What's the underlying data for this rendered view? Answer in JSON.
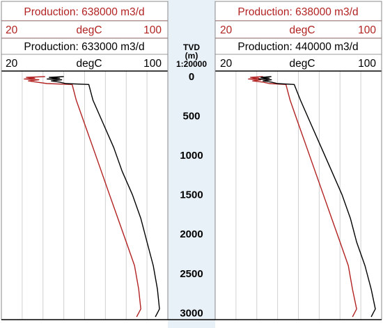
{
  "chart_data": [
    {
      "type": "line",
      "title": "",
      "depth_label": "TVD",
      "ylabel": "(m)",
      "scale": "1:20000",
      "ylim": [
        0,
        3050
      ],
      "y_inverted": true,
      "y_ticks": [
        0,
        500,
        1000,
        1500,
        2000,
        2500,
        3000
      ],
      "xlabel": "degC",
      "xlim": [
        20,
        100
      ],
      "grid": true,
      "series": [
        {
          "name": "Production: 638000 m3/d",
          "color": "#b22222",
          "points": [
            [
              41,
              0
            ],
            [
              32,
              10
            ],
            [
              36,
              20
            ],
            [
              31,
              30
            ],
            [
              38,
              40
            ],
            [
              33,
              55
            ],
            [
              37,
              70
            ],
            [
              42,
              88
            ],
            [
              54,
              100
            ],
            [
              56,
              300
            ],
            [
              60,
              600
            ],
            [
              64,
              900
            ],
            [
              68,
              1200
            ],
            [
              72,
              1500
            ],
            [
              76,
              1800
            ],
            [
              80,
              2100
            ],
            [
              84,
              2400
            ],
            [
              86,
              2700
            ],
            [
              87,
              2950
            ],
            [
              86,
              3000
            ],
            [
              85,
              3050
            ]
          ]
        },
        {
          "name": "Production: 633000 m3/d",
          "color": "#000000",
          "points": [
            [
              50,
              0
            ],
            [
              43,
              10
            ],
            [
              48,
              20
            ],
            [
              42,
              30
            ],
            [
              49,
              40
            ],
            [
              44,
              55
            ],
            [
              48,
              70
            ],
            [
              51,
              88
            ],
            [
              62,
              100
            ],
            [
              64,
              300
            ],
            [
              69,
              600
            ],
            [
              74,
              900
            ],
            [
              78,
              1200
            ],
            [
              83,
              1500
            ],
            [
              87,
              1800
            ],
            [
              90,
              2100
            ],
            [
              93,
              2400
            ],
            [
              95,
              2700
            ],
            [
              96,
              2950
            ],
            [
              95,
              3000
            ],
            [
              94,
              3050
            ]
          ]
        }
      ]
    },
    {
      "type": "line",
      "title": "",
      "ylim": [
        0,
        3050
      ],
      "y_inverted": true,
      "xlabel": "degC",
      "xlim": [
        20,
        100
      ],
      "grid": true,
      "series": [
        {
          "name": "Production: 638000 m3/d",
          "color": "#b22222",
          "points": [
            [
              43,
              0
            ],
            [
              37,
              10
            ],
            [
              41,
              20
            ],
            [
              36,
              30
            ],
            [
              42,
              40
            ],
            [
              38,
              55
            ],
            [
              43,
              70
            ],
            [
              46,
              88
            ],
            [
              54,
              100
            ],
            [
              56,
              300
            ],
            [
              60,
              600
            ],
            [
              64,
              900
            ],
            [
              68,
              1200
            ],
            [
              72,
              1500
            ],
            [
              76,
              1800
            ],
            [
              80,
              2100
            ],
            [
              84,
              2400
            ],
            [
              86,
              2700
            ],
            [
              88,
              2950
            ],
            [
              87,
              3000
            ],
            [
              86,
              3050
            ]
          ]
        },
        {
          "name": "Production: 440000 m3/d",
          "color": "#000000",
          "points": [
            [
              47,
              0
            ],
            [
              42,
              10
            ],
            [
              46,
              20
            ],
            [
              41,
              30
            ],
            [
              47,
              40
            ],
            [
              43,
              55
            ],
            [
              47,
              70
            ],
            [
              50,
              88
            ],
            [
              58,
              100
            ],
            [
              61,
              300
            ],
            [
              66,
              600
            ],
            [
              71,
              900
            ],
            [
              76,
              1200
            ],
            [
              81,
              1500
            ],
            [
              85,
              1800
            ],
            [
              88,
              2100
            ],
            [
              92,
              2400
            ],
            [
              95,
              2700
            ],
            [
              97,
              2950
            ],
            [
              96,
              3000
            ],
            [
              95,
              3050
            ]
          ]
        }
      ]
    }
  ],
  "panels": [
    {
      "curves": [
        {
          "title": "Production: 638000 m3/d",
          "min": "20",
          "unit": "degC",
          "max": "100",
          "color": "#b22222"
        },
        {
          "title": "Production: 633000 m3/d",
          "min": "20",
          "unit": "degC",
          "max": "100",
          "color": "#000000"
        }
      ]
    },
    {
      "curves": [
        {
          "title": "Production: 638000 m3/d",
          "min": "20",
          "unit": "degC",
          "max": "100",
          "color": "#b22222"
        },
        {
          "title": "Production: 440000 m3/d",
          "min": "20",
          "unit": "degC",
          "max": "100",
          "color": "#000000"
        }
      ]
    }
  ],
  "depth_track": {
    "label": "TVD",
    "unit": "(m)",
    "scale": "1:20000",
    "ticks": [
      "0",
      "500",
      "1000",
      "1500",
      "2000",
      "2500",
      "3000"
    ],
    "background": "#e8f0f8"
  }
}
